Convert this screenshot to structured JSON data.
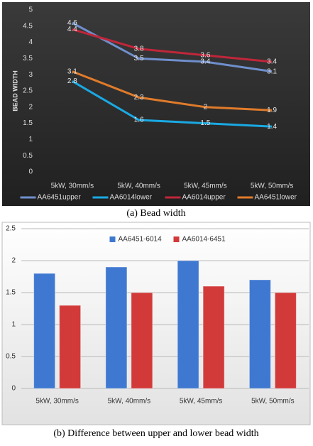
{
  "chart_data": [
    {
      "type": "line",
      "caption": "(a)  Bead width",
      "y_label": "BEAD WIDTH",
      "categories": [
        "5kW, 30mm/s",
        "5kW, 40mm/s",
        "5kW, 45mm/s",
        "5kW, 50mm/s"
      ],
      "series": [
        {
          "name": "AA6451upper",
          "color": "#6f8fcc",
          "values": [
            4.6,
            3.5,
            3.4,
            3.1
          ]
        },
        {
          "name": "AA6014lower",
          "color": "#1aa9e3",
          "values": [
            2.8,
            1.6,
            1.5,
            1.4
          ]
        },
        {
          "name": "AA6014upper",
          "color": "#c0263a",
          "values": [
            4.4,
            3.8,
            3.6,
            3.4
          ]
        },
        {
          "name": "AA6451lower",
          "color": "#e07b2a",
          "values": [
            3.1,
            2.3,
            2,
            1.9
          ]
        }
      ],
      "ylim": [
        0,
        5
      ],
      "yticks": [
        0,
        0.5,
        1,
        1.5,
        2,
        2.5,
        3,
        3.5,
        4,
        4.5,
        5
      ],
      "grid": false,
      "data_labels": true,
      "legend": "bottom"
    },
    {
      "type": "bar",
      "caption": "(b)  Difference  between  upper  and  lower  bead  width",
      "categories": [
        "5kW, 30mm/s",
        "5kW, 40mm/s",
        "5kW, 45mm/s",
        "5kW, 50mm/s"
      ],
      "series": [
        {
          "name": "AA6451-6014",
          "color": "#3f78d0",
          "values": [
            1.8,
            1.9,
            2.0,
            1.7
          ]
        },
        {
          "name": "AA6014-6451",
          "color": "#d23a3a",
          "values": [
            1.3,
            1.5,
            1.6,
            1.5
          ]
        }
      ],
      "ylim": [
        0,
        2.5
      ],
      "yticks": [
        0,
        0.5,
        1,
        1.5,
        2,
        2.5
      ],
      "grid": true,
      "data_labels": false,
      "legend": "top"
    }
  ]
}
